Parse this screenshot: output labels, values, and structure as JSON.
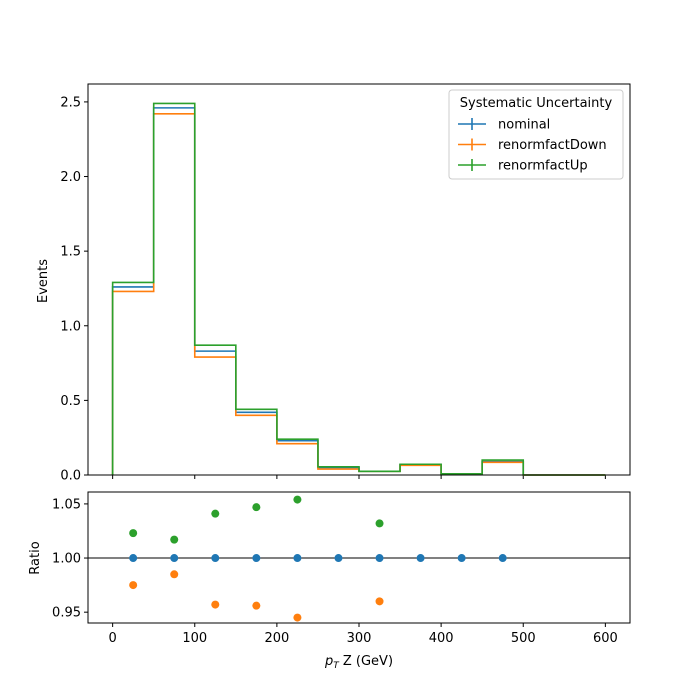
{
  "chart_data": [
    {
      "type": "line",
      "panel": "main",
      "drawstyle": "step histogram",
      "ylabel": "Events",
      "ylim": [
        0,
        2.62
      ],
      "y_ticks": [
        "0.0",
        "0.5",
        "1.0",
        "1.5",
        "2.0",
        "2.5"
      ],
      "bin_edges": [
        0,
        50,
        100,
        150,
        200,
        250,
        300,
        350,
        400,
        450,
        500,
        600
      ],
      "legend": {
        "title": "Systematic Uncertainty",
        "position": "top-right"
      },
      "series": [
        {
          "name": "nominal",
          "color": "#1f77b4",
          "values": [
            1.26,
            2.46,
            0.83,
            0.42,
            0.23,
            0.05,
            0.025,
            0.07,
            0.008,
            0.09,
            0.0
          ]
        },
        {
          "name": "renormfactDown",
          "color": "#ff7f0e",
          "values": [
            1.23,
            2.42,
            0.79,
            0.4,
            0.21,
            0.04,
            0.025,
            0.065,
            0.008,
            0.085,
            0.0
          ]
        },
        {
          "name": "renormfactUp",
          "color": "#2ca02c",
          "values": [
            1.29,
            2.49,
            0.87,
            0.44,
            0.24,
            0.055,
            0.025,
            0.072,
            0.008,
            0.1,
            0.0
          ]
        }
      ]
    },
    {
      "type": "scatter",
      "panel": "ratio",
      "xlabel": "p_T Z (GeV)",
      "ylabel": "Ratio",
      "xlim": [
        -30,
        630
      ],
      "x_ticks": [
        "0",
        "100",
        "200",
        "300",
        "400",
        "500",
        "600"
      ],
      "ylim": [
        0.94,
        1.061
      ],
      "y_ticks": [
        "0.95",
        "1.00",
        "1.05"
      ],
      "reference_line": 1.0,
      "series": [
        {
          "name": "nominal",
          "color": "#1f77b4",
          "x": [
            25,
            75,
            125,
            175,
            225,
            275,
            325,
            375,
            425,
            475
          ],
          "y": [
            1.0,
            1.0,
            1.0,
            1.0,
            1.0,
            1.0,
            1.0,
            1.0,
            1.0,
            1.0
          ]
        },
        {
          "name": "renormfactDown",
          "color": "#ff7f0e",
          "x": [
            25,
            75,
            125,
            175,
            225,
            325
          ],
          "y": [
            0.975,
            0.985,
            0.957,
            0.956,
            0.945,
            0.96
          ]
        },
        {
          "name": "renormfactUp",
          "color": "#2ca02c",
          "x": [
            25,
            75,
            125,
            175,
            225,
            325
          ],
          "y": [
            1.023,
            1.017,
            1.041,
            1.047,
            1.054,
            1.032
          ]
        }
      ]
    }
  ]
}
